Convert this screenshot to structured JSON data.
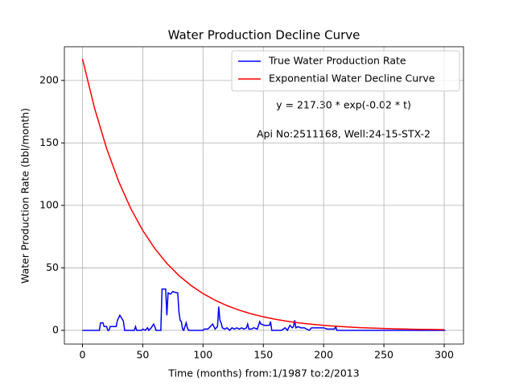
{
  "chart_data": {
    "type": "line",
    "title": "Water Production Decline Curve",
    "xlabel": "Time (months) from:1/1987 to:2/2013",
    "ylabel": "Water Production Rate (bbl/month)",
    "annotations": [
      "y = 217.30 * exp(-0.02 * t)",
      "Api No:2511168, Well:24-15-STX-2"
    ],
    "xlim": [
      -15,
      316
    ],
    "ylim": [
      -11,
      227
    ],
    "xticks": [
      0,
      50,
      100,
      150,
      200,
      250,
      300
    ],
    "yticks": [
      0,
      50,
      100,
      150,
      200
    ],
    "grid": true,
    "legend": "upper right",
    "series": [
      {
        "name": "True Water Production Rate",
        "color": "#0000ff",
        "x": [
          0,
          14,
          15,
          17,
          18,
          20,
          21,
          22,
          23,
          28,
          29,
          31,
          33,
          34,
          35,
          43,
          44,
          45,
          49,
          50,
          52,
          54,
          55,
          57,
          59,
          60,
          61,
          65,
          66,
          69,
          70,
          71,
          73,
          75,
          78,
          79,
          80,
          81,
          82,
          83,
          84,
          86,
          87,
          88,
          100,
          101,
          104,
          106,
          108,
          110,
          112,
          113,
          114,
          115,
          116,
          118,
          120,
          122,
          124,
          126,
          128,
          130,
          132,
          134,
          136,
          137,
          138,
          140,
          142,
          145,
          147,
          148,
          151,
          155,
          156,
          157,
          165,
          168,
          170,
          172,
          174,
          175,
          176,
          177,
          179,
          181,
          184,
          186,
          188,
          190,
          195,
          200,
          203,
          206,
          209,
          210,
          211,
          301
        ],
        "values": [
          0,
          0,
          6,
          6,
          3,
          3,
          0,
          0,
          3,
          3,
          8,
          12,
          9,
          7,
          0,
          0,
          3,
          0,
          0,
          1,
          0,
          2,
          0,
          2,
          5,
          3,
          0,
          0,
          33,
          33,
          12,
          30,
          29,
          31,
          30,
          30,
          15,
          8,
          7,
          1,
          0,
          6,
          2,
          0,
          0,
          1,
          1,
          3,
          5,
          1,
          3,
          19,
          8,
          6,
          2,
          1,
          2,
          0,
          2,
          1,
          2,
          1,
          2,
          1,
          2,
          5,
          1,
          1,
          2,
          1,
          7,
          5,
          4,
          4,
          7,
          0,
          0,
          2,
          0,
          4,
          2,
          3,
          8,
          2,
          3,
          2,
          2,
          1,
          0,
          2,
          2,
          2,
          1,
          1,
          1,
          3,
          0,
          0
        ]
      },
      {
        "name": "Exponential Water Decline Curve",
        "color": "#ff0000",
        "x": [
          0,
          10,
          20,
          30,
          40,
          50,
          60,
          70,
          80,
          90,
          100,
          110,
          120,
          130,
          140,
          150,
          160,
          170,
          180,
          190,
          200,
          210,
          220,
          230,
          240,
          250,
          260,
          270,
          280,
          290,
          300
        ],
        "values": [
          217.3,
          177.91,
          145.66,
          119.26,
          97.64,
          79.94,
          65.45,
          53.59,
          43.87,
          35.92,
          29.41,
          24.08,
          19.71,
          16.14,
          13.21,
          10.82,
          8.86,
          7.25,
          5.94,
          4.86,
          3.98,
          3.26,
          2.67,
          2.18,
          1.79,
          1.46,
          1.2,
          0.98,
          0.8,
          0.66,
          0.54
        ]
      }
    ]
  }
}
